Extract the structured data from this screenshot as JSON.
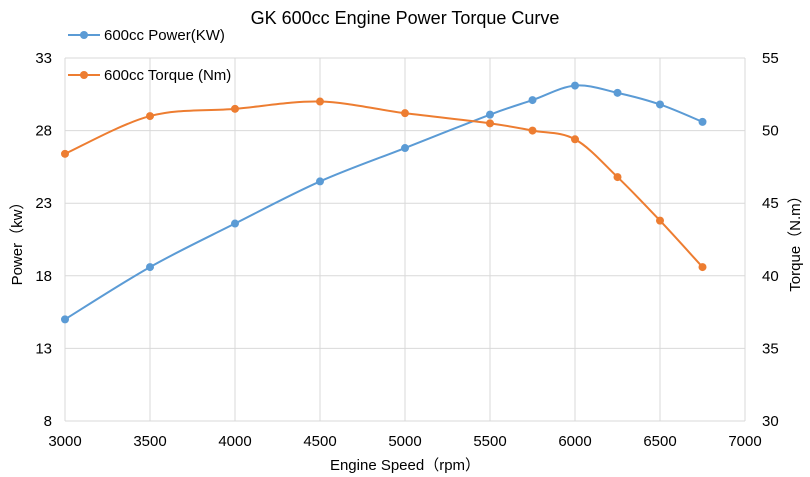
{
  "chart_data": {
    "type": "line",
    "title": "GK 600cc Engine Power Torque Curve",
    "xlabel": "Engine Speed（rpm）",
    "ylabel_left": "Power（kw）",
    "ylabel_right": "Torque（N.m）",
    "xlim": [
      3000,
      7000
    ],
    "xticks": [
      3000,
      3500,
      4000,
      4500,
      5000,
      5500,
      6000,
      6500,
      7000
    ],
    "ylim_left": [
      8,
      33
    ],
    "yticks_left": [
      8,
      13,
      18,
      23,
      28,
      33
    ],
    "ylim_right": [
      30,
      55
    ],
    "yticks_right": [
      30,
      35,
      40,
      45,
      50,
      55
    ],
    "grid": true,
    "smooth": true,
    "legend_position": "top-left",
    "series": [
      {
        "name": "600cc Power(KW)",
        "axis": "left",
        "color": "#5B9BD5",
        "x": [
          3000,
          3500,
          4000,
          4500,
          5000,
          5500,
          5750,
          6000,
          6250,
          6500,
          6750
        ],
        "y": [
          15.0,
          18.6,
          21.6,
          24.5,
          26.8,
          29.1,
          30.1,
          31.1,
          30.6,
          29.8,
          28.6
        ]
      },
      {
        "name": "600cc Torque (Nm)",
        "axis": "right",
        "color": "#ED7D31",
        "x": [
          3000,
          3500,
          4000,
          4500,
          5000,
          5500,
          5750,
          6000,
          6250,
          6500,
          6750
        ],
        "y": [
          48.4,
          51.0,
          51.5,
          52.0,
          51.2,
          50.5,
          50.0,
          49.4,
          46.8,
          43.8,
          40.6
        ]
      }
    ]
  }
}
